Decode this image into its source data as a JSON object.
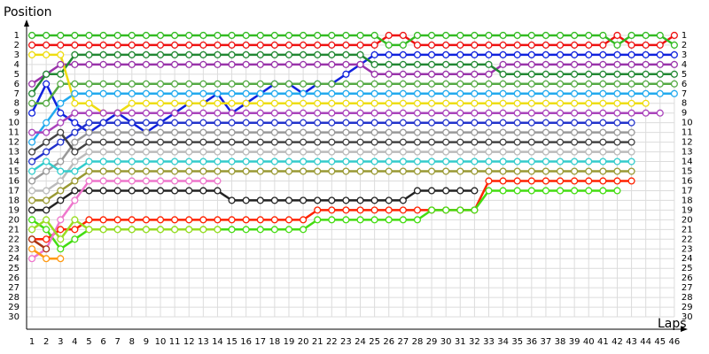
{
  "chart_data": {
    "type": "lapchart",
    "title": "Position",
    "x_label": "Laps",
    "x": [
      1,
      2,
      3,
      4,
      5,
      6,
      7,
      8,
      9,
      10,
      11,
      12,
      13,
      14,
      15,
      16,
      17,
      18,
      19,
      20,
      21,
      22,
      23,
      24,
      25,
      26,
      27,
      28,
      29,
      30,
      31,
      32,
      33,
      34,
      35,
      36,
      37,
      38,
      39,
      40,
      41,
      42,
      43,
      44,
      45,
      46
    ],
    "xlim": [
      0.6,
      47
    ],
    "ylim": [
      0,
      31
    ],
    "y_reversed": true,
    "grid": true,
    "yticks": [
      1,
      2,
      3,
      4,
      5,
      6,
      7,
      8,
      9,
      10,
      11,
      12,
      13,
      14,
      15,
      16,
      17,
      18,
      19,
      20,
      21,
      22,
      23,
      24,
      25,
      26,
      27,
      28,
      29,
      30
    ],
    "series": [
      {
        "color": "#ee1111",
        "values": [
          2,
          2,
          2,
          2,
          2,
          2,
          2,
          2,
          2,
          2,
          2,
          2,
          2,
          2,
          2,
          2,
          2,
          2,
          2,
          2,
          2,
          2,
          2,
          2,
          2,
          1,
          1,
          2,
          2,
          2,
          2,
          2,
          2,
          2,
          2,
          2,
          2,
          2,
          2,
          2,
          2,
          1,
          2,
          2,
          2,
          1
        ]
      },
      {
        "color": "#33bb22",
        "values": [
          1,
          1,
          1,
          1,
          1,
          1,
          1,
          1,
          1,
          1,
          1,
          1,
          1,
          1,
          1,
          1,
          1,
          1,
          1,
          1,
          1,
          1,
          1,
          1,
          1,
          2,
          2,
          1,
          1,
          1,
          1,
          1,
          1,
          1,
          1,
          1,
          1,
          1,
          1,
          1,
          1,
          2,
          1,
          1,
          1,
          2
        ]
      },
      {
        "color": "#1122dd",
        "values": [
          9,
          6,
          9,
          10,
          11,
          10,
          9,
          10,
          11,
          10,
          9,
          8,
          8,
          7,
          9,
          8,
          7,
          6,
          6,
          7,
          6,
          6,
          5,
          4,
          3,
          3,
          3,
          3,
          3,
          3,
          3,
          3,
          3,
          3,
          3,
          3,
          3,
          3,
          3,
          3,
          3,
          3,
          3,
          3,
          3,
          3
        ]
      },
      {
        "color": "#9933aa",
        "values": [
          6,
          5,
          4,
          4,
          4,
          4,
          4,
          4,
          4,
          4,
          4,
          4,
          4,
          4,
          4,
          4,
          4,
          4,
          4,
          4,
          4,
          4,
          4,
          4,
          5,
          5,
          5,
          5,
          5,
          5,
          5,
          5,
          5,
          4,
          4,
          4,
          4,
          4,
          4,
          4,
          4,
          4,
          4,
          4,
          4,
          4
        ]
      },
      {
        "color": "#228833",
        "values": [
          7,
          5,
          5,
          3,
          3,
          3,
          3,
          3,
          3,
          3,
          3,
          3,
          3,
          3,
          3,
          3,
          3,
          3,
          3,
          3,
          3,
          3,
          3,
          3,
          4,
          4,
          4,
          4,
          4,
          4,
          4,
          4,
          4,
          5,
          5,
          5,
          5,
          5,
          5,
          5,
          5,
          5,
          5,
          5,
          5,
          5
        ]
      },
      {
        "color": "#55aa44",
        "values": [
          8,
          8,
          6,
          6,
          6,
          6,
          6,
          6,
          6,
          6,
          6,
          6,
          6,
          6,
          6,
          6,
          6,
          6,
          6,
          6,
          6,
          6,
          6,
          6,
          6,
          6,
          6,
          6,
          6,
          6,
          6,
          6,
          6,
          6,
          6,
          6,
          6,
          6,
          6,
          6,
          6,
          6,
          6,
          6,
          6,
          6
        ]
      },
      {
        "color": "#22aaee",
        "values": [
          12,
          10,
          8,
          7,
          7,
          7,
          7,
          7,
          7,
          7,
          7,
          7,
          7,
          7,
          7,
          7,
          7,
          7,
          7,
          7,
          7,
          7,
          7,
          7,
          7,
          7,
          7,
          7,
          7,
          7,
          7,
          7,
          7,
          7,
          7,
          7,
          7,
          7,
          7,
          7,
          7,
          7,
          7,
          7,
          7,
          7
        ]
      },
      {
        "color": "#eedd11",
        "values": [
          3,
          3,
          3,
          8,
          8,
          9,
          9,
          8,
          8,
          8,
          8,
          8,
          8,
          8,
          8,
          8,
          8,
          8,
          8,
          8,
          8,
          8,
          8,
          8,
          8,
          8,
          8,
          8,
          8,
          8,
          8,
          8,
          8,
          8,
          8,
          8,
          8,
          8,
          8,
          8,
          8,
          8,
          8,
          8,
          null,
          null
        ]
      },
      {
        "color": "#aa44bb",
        "values": [
          11,
          11,
          10,
          9,
          9,
          9,
          9,
          9,
          9,
          9,
          9,
          9,
          9,
          9,
          9,
          9,
          9,
          9,
          9,
          9,
          9,
          9,
          9,
          9,
          9,
          9,
          9,
          9,
          9,
          9,
          9,
          9,
          9,
          9,
          9,
          9,
          9,
          9,
          9,
          9,
          9,
          9,
          9,
          9,
          9,
          null
        ]
      },
      {
        "color": "#2233cc",
        "values": [
          14,
          13,
          12,
          11,
          10,
          10,
          10,
          10,
          10,
          10,
          10,
          10,
          10,
          10,
          10,
          10,
          10,
          10,
          10,
          10,
          10,
          10,
          10,
          10,
          10,
          10,
          10,
          10,
          10,
          10,
          10,
          10,
          10,
          10,
          10,
          10,
          10,
          10,
          10,
          10,
          10,
          10,
          10,
          null,
          null,
          null
        ]
      },
      {
        "color": "#999999",
        "values": [
          16,
          15,
          14,
          12,
          11,
          11,
          11,
          11,
          11,
          11,
          11,
          11,
          11,
          11,
          11,
          11,
          11,
          11,
          11,
          11,
          11,
          11,
          11,
          11,
          11,
          11,
          11,
          11,
          11,
          11,
          11,
          11,
          11,
          11,
          11,
          11,
          11,
          11,
          11,
          11,
          11,
          11,
          11,
          null,
          null,
          null
        ]
      },
      {
        "color": "#444444",
        "values": [
          13,
          12,
          11,
          13,
          12,
          12,
          12,
          12,
          12,
          12,
          12,
          12,
          12,
          12,
          12,
          12,
          12,
          12,
          12,
          12,
          12,
          12,
          12,
          12,
          12,
          12,
          12,
          12,
          12,
          12,
          12,
          12,
          12,
          12,
          12,
          12,
          12,
          12,
          12,
          12,
          12,
          12,
          12,
          null,
          null,
          null
        ]
      },
      {
        "color": "#bbbbbb",
        "values": [
          17,
          17,
          16,
          14,
          13,
          13,
          13,
          13,
          13,
          13,
          13,
          13,
          13,
          13,
          13,
          13,
          13,
          13,
          13,
          13,
          13,
          13,
          13,
          13,
          13,
          13,
          13,
          13,
          13,
          13,
          13,
          13,
          13,
          13,
          13,
          13,
          13,
          13,
          13,
          13,
          13,
          13,
          13,
          null,
          null,
          null
        ]
      },
      {
        "color": "#33cccc",
        "values": [
          15,
          14,
          15,
          15,
          14,
          14,
          14,
          14,
          14,
          14,
          14,
          14,
          14,
          14,
          14,
          14,
          14,
          14,
          14,
          14,
          14,
          14,
          14,
          14,
          14,
          14,
          14,
          14,
          14,
          14,
          14,
          14,
          14,
          14,
          14,
          14,
          14,
          14,
          14,
          14,
          14,
          14,
          14,
          null,
          null,
          null
        ]
      },
      {
        "color": "#999933",
        "values": [
          18,
          18,
          17,
          16,
          15,
          15,
          15,
          15,
          15,
          15,
          15,
          15,
          15,
          15,
          15,
          15,
          15,
          15,
          15,
          15,
          15,
          15,
          15,
          15,
          15,
          15,
          15,
          15,
          15,
          15,
          15,
          15,
          15,
          15,
          15,
          15,
          15,
          15,
          15,
          15,
          15,
          15,
          15,
          null,
          null,
          null
        ]
      },
      {
        "color": "#ff2200",
        "values": [
          22,
          22,
          21,
          21,
          20,
          20,
          20,
          20,
          20,
          20,
          20,
          20,
          20,
          20,
          20,
          20,
          20,
          20,
          20,
          20,
          19,
          19,
          19,
          19,
          19,
          19,
          19,
          19,
          19,
          19,
          19,
          19,
          16,
          16,
          16,
          16,
          16,
          16,
          16,
          16,
          16,
          16,
          16,
          null,
          null,
          null
        ]
      },
      {
        "color": "#44dd11",
        "values": [
          20,
          21,
          23,
          22,
          21,
          21,
          21,
          21,
          21,
          21,
          21,
          21,
          21,
          21,
          21,
          21,
          21,
          21,
          21,
          21,
          20,
          20,
          20,
          20,
          20,
          20,
          20,
          20,
          19,
          19,
          19,
          19,
          17,
          17,
          17,
          17,
          17,
          17,
          17,
          17,
          17,
          17,
          null,
          null,
          null,
          null
        ]
      },
      {
        "color": "#222222",
        "values": [
          19,
          19,
          18,
          17,
          17,
          17,
          17,
          17,
          17,
          17,
          17,
          17,
          17,
          17,
          18,
          18,
          18,
          18,
          18,
          18,
          18,
          18,
          18,
          18,
          18,
          18,
          18,
          17,
          17,
          17,
          17,
          17,
          null,
          null,
          null,
          null,
          null,
          null,
          null,
          null,
          null,
          null,
          null,
          null,
          null,
          null
        ]
      },
      {
        "color": "#ee77cc",
        "values": [
          24,
          23,
          20,
          18,
          16,
          16,
          16,
          16,
          16,
          16,
          16,
          16,
          16,
          16,
          null,
          null,
          null,
          null,
          null,
          null,
          null,
          null,
          null,
          null,
          null,
          null,
          null,
          null,
          null,
          null,
          null,
          null,
          null,
          null,
          null,
          null,
          null,
          null,
          null,
          null,
          null,
          null,
          null,
          null,
          null,
          null
        ]
      },
      {
        "color": "#99dd22",
        "values": [
          21,
          20,
          22,
          20,
          21,
          21,
          21,
          21,
          21,
          21,
          21,
          21,
          21,
          21,
          null,
          null,
          null,
          null,
          null,
          null,
          null,
          null,
          null,
          null,
          null,
          null,
          null,
          null,
          null,
          null,
          null,
          null,
          null,
          null,
          null,
          null,
          null,
          null,
          null,
          null,
          null,
          null,
          null,
          null,
          null,
          null
        ]
      },
      {
        "color": "#ff9911",
        "values": [
          23,
          24,
          24,
          null,
          null,
          null,
          null,
          null,
          null,
          null,
          null,
          null,
          null,
          null,
          null,
          null,
          null,
          null,
          null,
          null,
          null,
          null,
          null,
          null,
          null,
          null,
          null,
          null,
          null,
          null,
          null,
          null,
          null,
          null,
          null,
          null,
          null,
          null,
          null,
          null,
          null,
          null,
          null,
          null,
          null,
          null
        ]
      },
      {
        "color": "#aa3311",
        "values": [
          22,
          23,
          null,
          null,
          null,
          null,
          null,
          null,
          null,
          null,
          null,
          null,
          null,
          null,
          null,
          null,
          null,
          null,
          null,
          null,
          null,
          null,
          null,
          null,
          null,
          null,
          null,
          null,
          null,
          null,
          null,
          null,
          null,
          null,
          null,
          null,
          null,
          null,
          null,
          null,
          null,
          null,
          null,
          null,
          null,
          null
        ]
      }
    ]
  }
}
